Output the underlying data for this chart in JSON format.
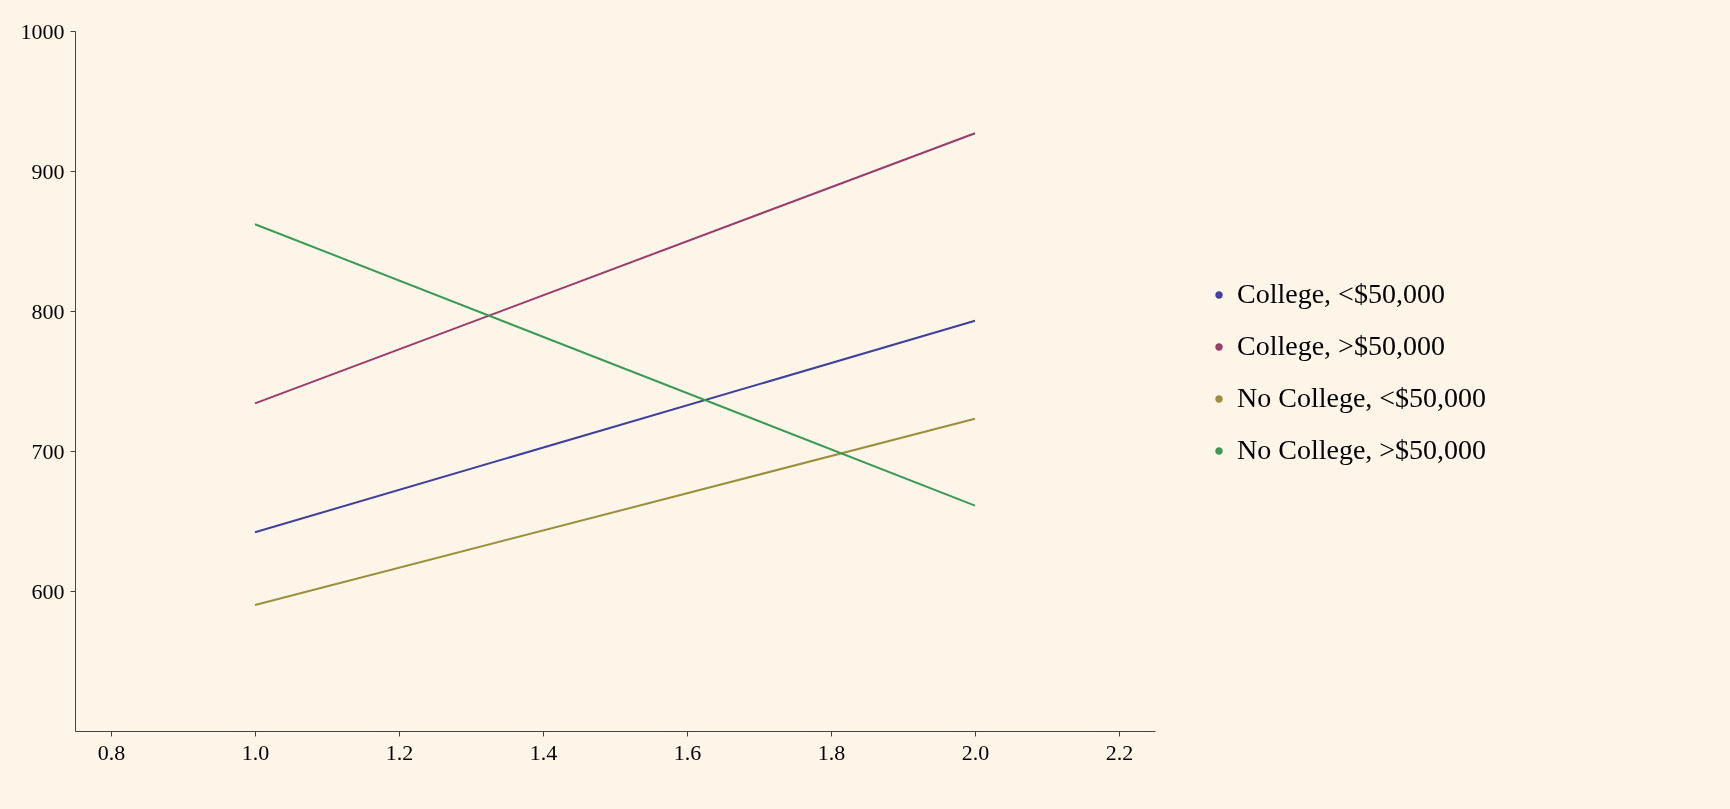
{
  "chart_data": {
    "type": "line",
    "x": [
      1,
      2
    ],
    "series": [
      {
        "name": "College, <$50,000",
        "color": "#3f3f9f",
        "values": [
          642,
          793
        ]
      },
      {
        "name": "College, >$50,000",
        "color": "#9a3b6e",
        "values": [
          734,
          927
        ]
      },
      {
        "name": "No College, <$50,000",
        "color": "#9b8f3a",
        "values": [
          590,
          723
        ]
      },
      {
        "name": "No College, >$50,000",
        "color": "#3a9a55",
        "values": [
          862,
          661
        ]
      }
    ],
    "xlim": [
      0.75,
      2.25
    ],
    "xticks": [
      0.8,
      {
        "value": 1,
        "label": "1.0"
      },
      1.2,
      1.4,
      1.6,
      1.8,
      {
        "value": 2,
        "label": "2.0"
      },
      2.2
    ],
    "ylim": [
      500,
      1000
    ],
    "yticks": [
      600,
      700,
      800,
      900,
      1000
    ],
    "grid": false,
    "legend": "right",
    "line_style": "solid",
    "marker": "none"
  }
}
